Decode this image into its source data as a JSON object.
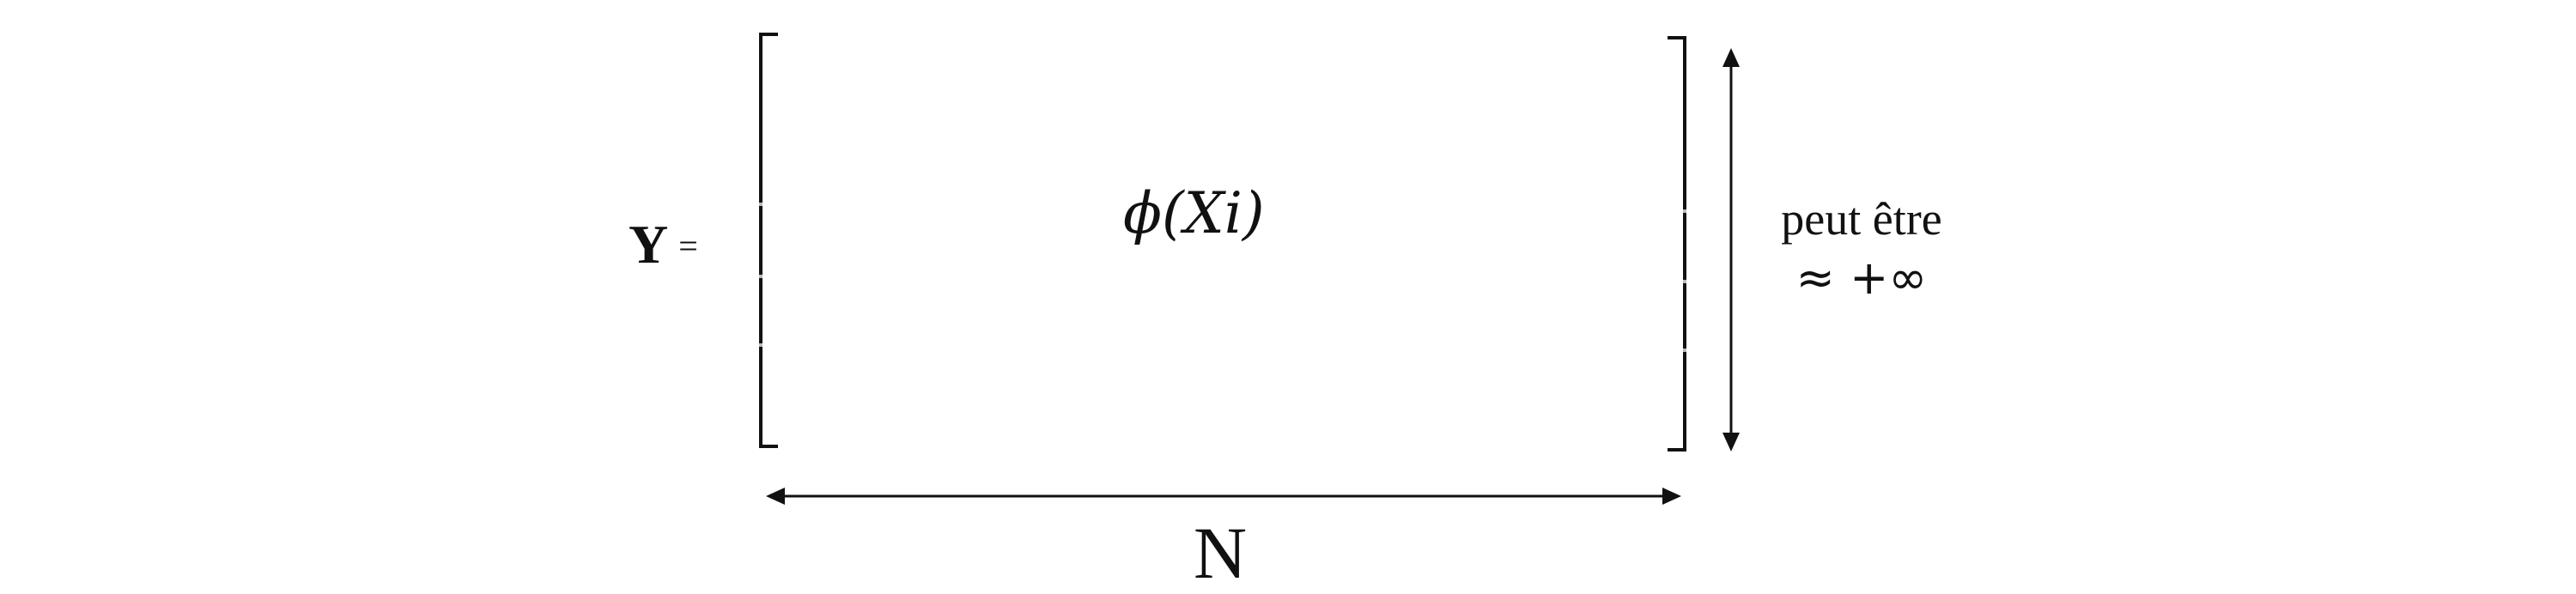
{
  "diagram": {
    "lhs": {
      "variable": "Y",
      "equals": "="
    },
    "matrix": {
      "content": "ϕ(Xi)"
    },
    "height_annotation": {
      "line1": "peut être",
      "line2": "≈ +∞"
    },
    "width_annotation": {
      "label": "N"
    },
    "colors": {
      "ink": "#111111",
      "background": "#ffffff"
    }
  }
}
